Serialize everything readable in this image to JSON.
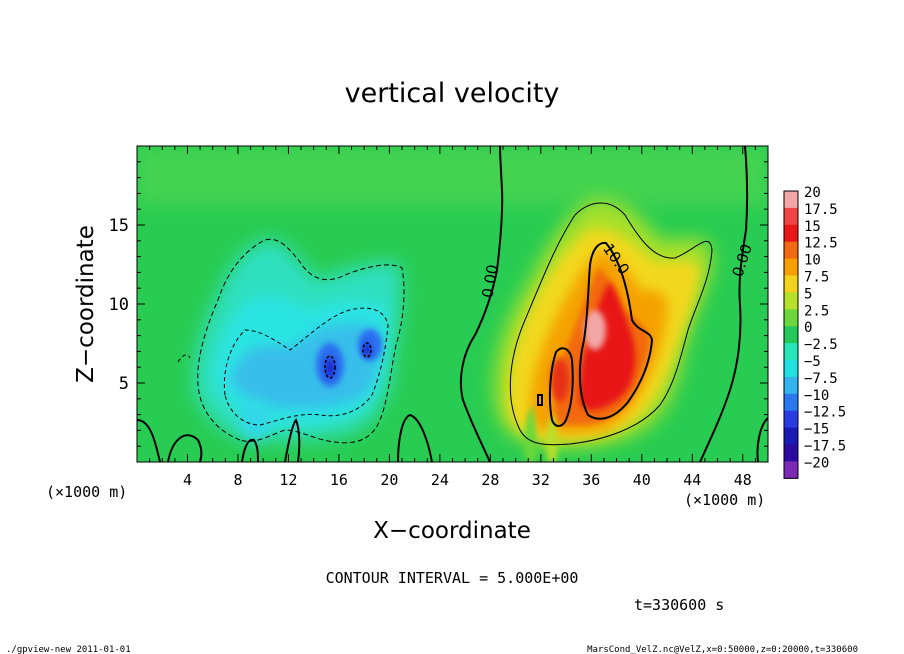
{
  "chart_data": {
    "type": "heatmap",
    "title": "vertical velocity",
    "xlabel": "X−coordinate",
    "ylabel": "Z−coordinate",
    "x_unit_left": "(×1000 m)",
    "x_unit_right": "(×1000 m)",
    "xlim": [
      0,
      50
    ],
    "ylim": [
      0,
      20
    ],
    "x_ticks": [
      4,
      8,
      12,
      16,
      20,
      24,
      28,
      32,
      36,
      40,
      44,
      48
    ],
    "y_ticks": [
      5,
      10,
      15
    ],
    "grid": false,
    "colorbar": {
      "labels": [
        "20",
        "17.5",
        "15",
        "12.5",
        "10",
        "7.5",
        "5",
        "2.5",
        "0",
        "−2.5",
        "−5",
        "−7.5",
        "−10",
        "−12.5",
        "−15",
        "−17.5",
        "−20"
      ],
      "colors": [
        "#f2a6a6",
        "#ee4444",
        "#e81818",
        "#f26a10",
        "#f5a000",
        "#f2d21a",
        "#b8e02a",
        "#6ad83a",
        "#22c85a",
        "#28e6b8",
        "#20e0e0",
        "#33b4ee",
        "#2a78f0",
        "#2a3ce0",
        "#1a1ab4",
        "#2a0aa0",
        "#7a2ab4"
      ]
    },
    "contour_labels": [
      "0.00",
      "10.0",
      "0.00"
    ],
    "contour_interval": 5.0,
    "value_range": [
      -17.5,
      19.0
    ],
    "features": [
      {
        "kind": "updraft",
        "center_x": 36.0,
        "center_z": 8.0,
        "max_value": 19.0
      },
      {
        "kind": "downdraft",
        "center_x": 15.5,
        "center_z": 6.0,
        "min_value": -17.5
      }
    ]
  },
  "footer": {
    "contour_interval": "CONTOUR INTERVAL = 5.000E+00",
    "time": "t=330600 s",
    "program": "./gpview-new   2011-01-01",
    "source": "MarsCond_VelZ.nc@VelZ,x=0:50000,z=0:20000,t=330600"
  }
}
